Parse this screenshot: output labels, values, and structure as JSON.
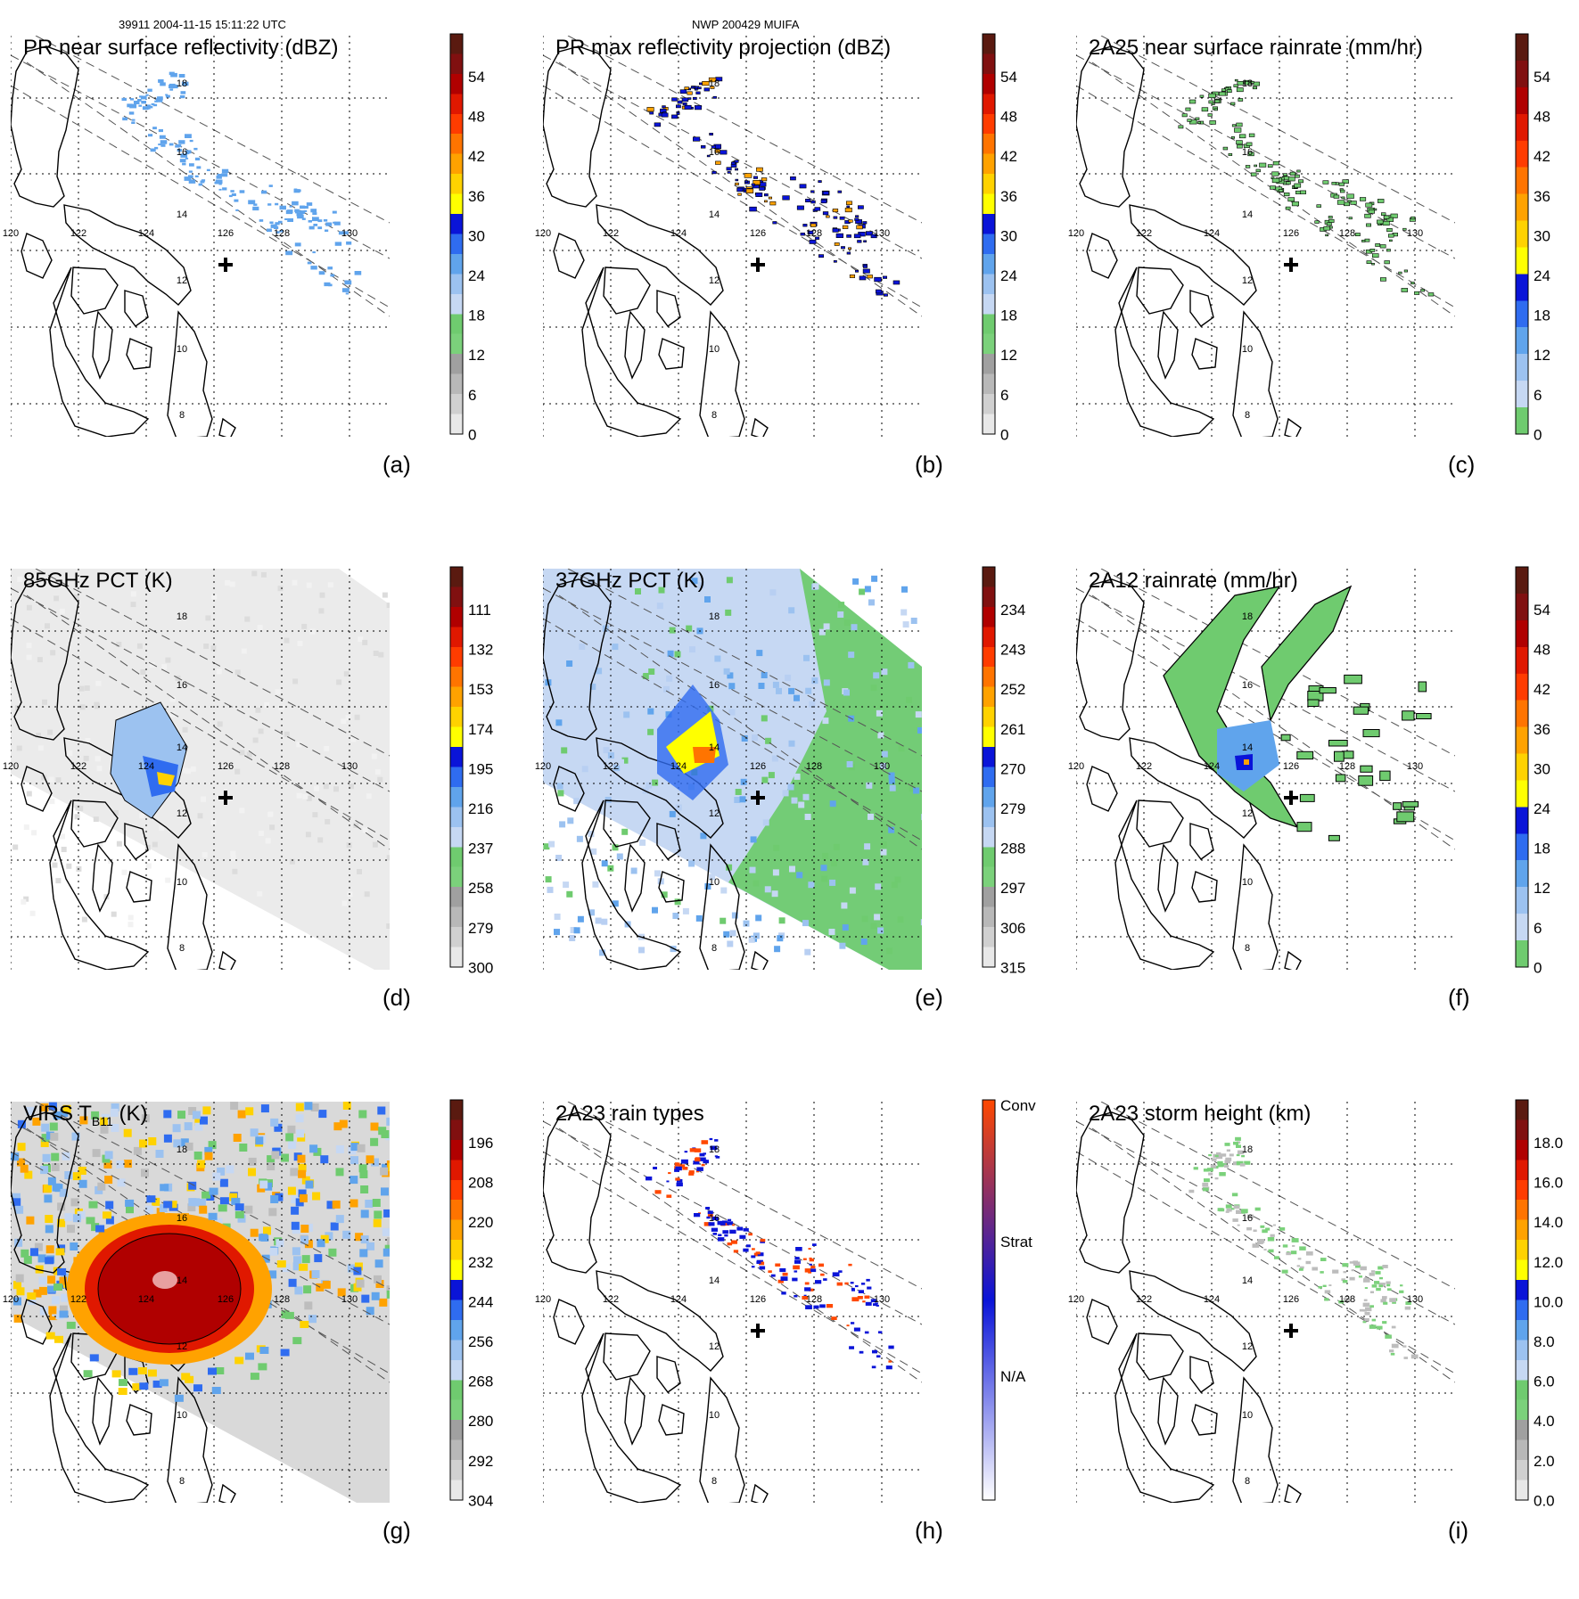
{
  "header": {
    "left": "39911 2004-11-15 15:11:22 UTC",
    "center": "NWP 200429 MUIFA"
  },
  "map": {
    "lon_labels": [
      "120",
      "122",
      "124",
      "126",
      "128",
      "130"
    ],
    "lat_labels": [
      "18",
      "16",
      "14",
      "12",
      "10",
      "8"
    ]
  },
  "panels": [
    {
      "id": "a",
      "title": "PR near surface reflectivity (dBZ)",
      "label": "(a)",
      "bg": "none",
      "scale": "dbz",
      "ticks": [
        "54",
        "48",
        "42",
        "36",
        "30",
        "24",
        "18",
        "12",
        "6",
        "0"
      ]
    },
    {
      "id": "b",
      "title": "PR max reflectivity projection (dBZ)",
      "label": "(b)",
      "bg": "none",
      "scale": "dbz",
      "ticks": [
        "54",
        "48",
        "42",
        "36",
        "30",
        "24",
        "18",
        "12",
        "6",
        "0"
      ]
    },
    {
      "id": "c",
      "title": "2A25 near surface rainrate (mm/hr)",
      "label": "(c)",
      "bg": "none",
      "scale": "rain",
      "ticks": [
        "54",
        "48",
        "42",
        "36",
        "30",
        "24",
        "18",
        "12",
        "6",
        "0"
      ]
    },
    {
      "id": "d",
      "title": "85GHz PCT (K)",
      "label": "(d)",
      "bg": "gray",
      "scale": "pct",
      "ticks": [
        "111",
        "132",
        "153",
        "174",
        "195",
        "216",
        "237",
        "258",
        "279",
        "300"
      ]
    },
    {
      "id": "e",
      "title": "37GHz PCT (K)",
      "label": "(e)",
      "bg": "blue",
      "scale": "pct",
      "ticks": [
        "234",
        "243",
        "252",
        "261",
        "270",
        "279",
        "288",
        "297",
        "306",
        "315"
      ]
    },
    {
      "id": "f",
      "title": "2A12 rainrate (mm/hr)",
      "label": "(f)",
      "bg": "none",
      "scale": "rain",
      "ticks": [
        "54",
        "48",
        "42",
        "36",
        "30",
        "24",
        "18",
        "12",
        "6",
        "0"
      ]
    },
    {
      "id": "g",
      "title": "VIRS T",
      "title_sub": "B11",
      "title_suffix": " (K)",
      "label": "(g)",
      "bg": "ir",
      "scale": "ir",
      "ticks": [
        "196",
        "208",
        "220",
        "232",
        "244",
        "256",
        "268",
        "280",
        "292",
        "304"
      ]
    },
    {
      "id": "h",
      "title": "2A23 rain types",
      "label": "(h)",
      "bg": "none",
      "scale": "types",
      "ticks": [
        "Conv",
        "Strat",
        "N/A"
      ]
    },
    {
      "id": "i",
      "title": "2A23 storm height (km)",
      "label": "(i)",
      "bg": "none",
      "scale": "height",
      "ticks": [
        "18.0",
        "16.0",
        "14.0",
        "12.0",
        "10.0",
        "8.0",
        "6.0",
        "4.0",
        "2.0",
        "0.0"
      ]
    }
  ],
  "colors": {
    "dbz": [
      "#f8f8f8",
      "#e0e0e0",
      "#c8c8c8",
      "#b0b0b0",
      "#a0a0a0",
      "#7bd17b",
      "#6fcb6f",
      "#c6d8f3",
      "#9cc2f0",
      "#60a4ec",
      "#2f6cf0",
      "#0a14d8",
      "#ffff00",
      "#ffd200",
      "#ffa200",
      "#ff7400",
      "#ff3c00",
      "#e01800",
      "#b00000",
      "#801010",
      "#5a1a10"
    ],
    "rain": [
      "#7bd17b",
      "#6fcb6f",
      "#c6d8f3",
      "#9cc2f0",
      "#60a4ec",
      "#2f6cf0",
      "#0a14d8",
      "#ffff00",
      "#ffd200",
      "#ffa200",
      "#ff7400",
      "#ff3c00",
      "#e01800",
      "#b00000",
      "#801010",
      "#5a1a10"
    ],
    "types": [
      "#ffffff",
      "#0a14d8",
      "#ff4800"
    ]
  }
}
